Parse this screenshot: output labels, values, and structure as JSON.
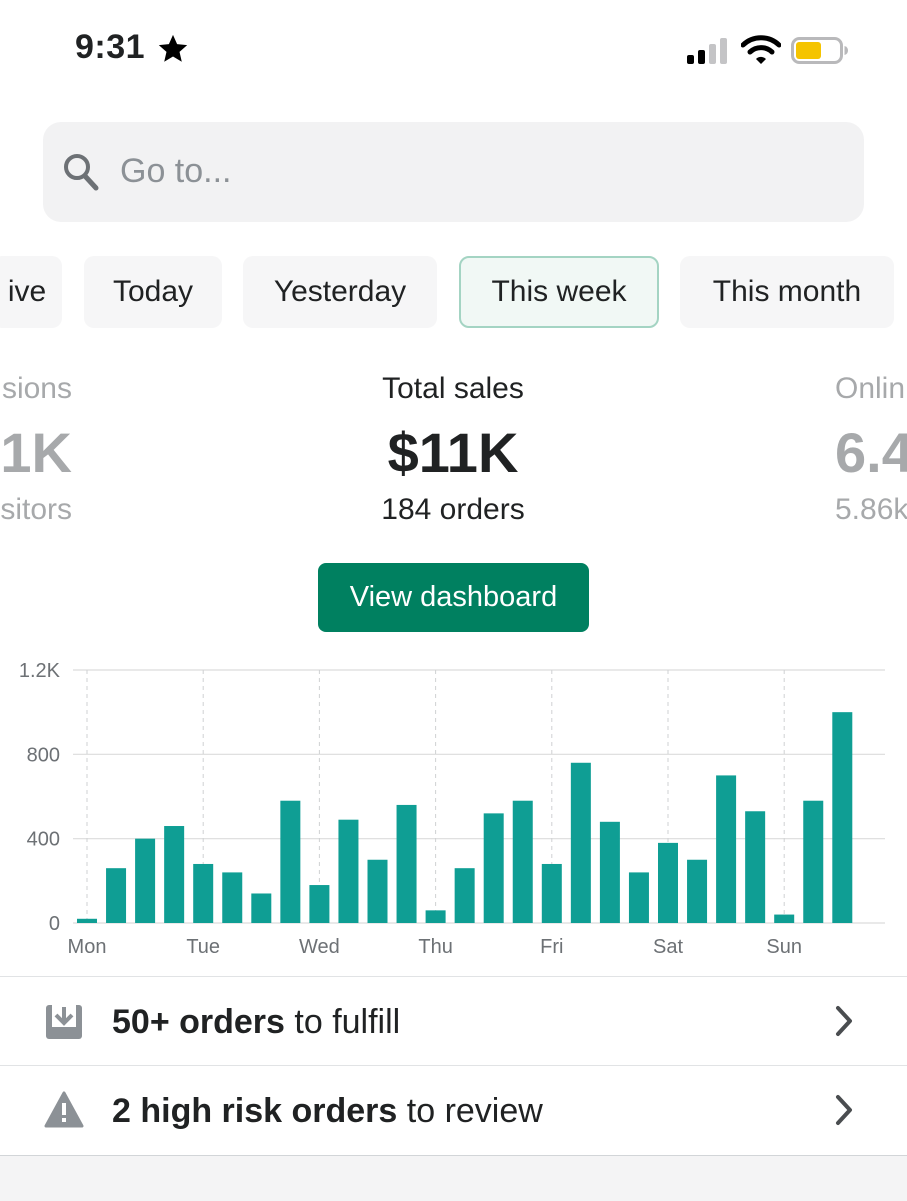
{
  "status_bar": {
    "time": "9:31",
    "battery_color": "#f5c400"
  },
  "search": {
    "placeholder": "Go to..."
  },
  "date_ranges": [
    {
      "label": "ive",
      "active": false
    },
    {
      "label": "Today",
      "active": false
    },
    {
      "label": "Yesterday",
      "active": false
    },
    {
      "label": "This week",
      "active": true
    },
    {
      "label": "This month",
      "active": false
    }
  ],
  "metrics": {
    "left": {
      "label": "sions",
      "value": ".1K",
      "sub": "sitors"
    },
    "center": {
      "label": "Total sales",
      "value": "$11K",
      "sub": "184 orders"
    },
    "right": {
      "label": "Onlin",
      "value": "6.4",
      "sub": "5.86k"
    }
  },
  "view_dashboard_label": "View dashboard",
  "chart_data": {
    "type": "bar",
    "title": "",
    "xlabel": "",
    "ylabel": "",
    "ylim": [
      0,
      1200
    ],
    "y_ticks": [
      "0",
      "400",
      "800",
      "1.2K"
    ],
    "y_tick_values": [
      0,
      400,
      800,
      1200
    ],
    "day_labels": [
      "Mon",
      "Tue",
      "Wed",
      "Thu",
      "Fri",
      "Sat",
      "Sun"
    ],
    "values": [
      20,
      260,
      400,
      460,
      280,
      240,
      140,
      580,
      180,
      490,
      300,
      560,
      60,
      260,
      520,
      580,
      280,
      760,
      480,
      240,
      380,
      300,
      700,
      530,
      40,
      580,
      1000
    ],
    "bar_color": "#0f9e94"
  },
  "tasks": [
    {
      "bold": "50+ orders",
      "rest": " to fulfill",
      "icon": "download-tray-icon"
    },
    {
      "bold": "2 high risk orders",
      "rest": " to review",
      "icon": "warning-icon"
    }
  ]
}
